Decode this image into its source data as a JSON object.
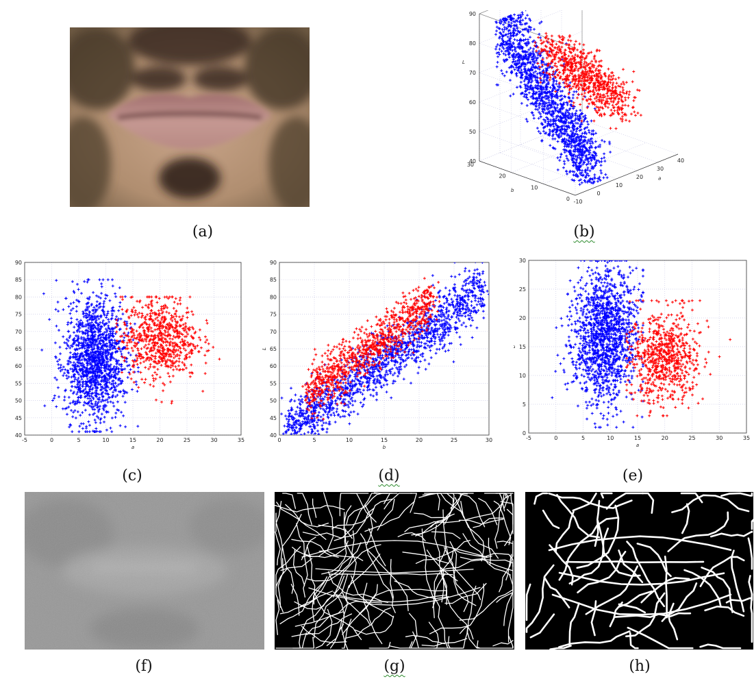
{
  "figure": {
    "captions": {
      "a": "(a)",
      "b": "(b)",
      "c": "(c)",
      "d": "(d)",
      "e": "(e)",
      "f": "(f)",
      "g": "(g)",
      "h": "(h)"
    },
    "colors": {
      "lip_class": "#ff0000",
      "skin_class": "#0000ff",
      "grid": "#c9c9e6"
    }
  },
  "chart_data": [
    {
      "panel": "b",
      "type": "scatter",
      "projection": "3d",
      "xlabel": "a",
      "ylabel": "b",
      "zlabel": "L",
      "xlim": [
        -10,
        40
      ],
      "ylim": [
        0,
        30
      ],
      "zlim": [
        40,
        90
      ],
      "x_ticks": [
        "-10",
        "0",
        "10",
        "20",
        "30",
        "40"
      ],
      "y_ticks": [
        "0",
        "10",
        "20",
        "30"
      ],
      "z_ticks": [
        "40",
        "50",
        "60",
        "70",
        "80",
        "90"
      ],
      "series": [
        {
          "color": "#0000ff",
          "marker": "+",
          "a_range": [
            -2,
            14
          ],
          "b_range": [
            2,
            30
          ],
          "L_range": [
            40,
            85
          ]
        },
        {
          "color": "#ff0000",
          "marker": "+",
          "a_range": [
            10,
            32
          ],
          "b_range": [
            4,
            26
          ],
          "L_range": [
            48,
            78
          ]
        }
      ]
    },
    {
      "panel": "c",
      "type": "scatter",
      "xlabel": "a",
      "ylabel": "L",
      "xlim": [
        -5,
        35
      ],
      "ylim": [
        40,
        90
      ],
      "x_ticks": [
        "-5",
        "0",
        "5",
        "10",
        "15",
        "20",
        "25",
        "30",
        "35"
      ],
      "y_ticks": [
        "40",
        "45",
        "50",
        "55",
        "60",
        "65",
        "70",
        "75",
        "80",
        "85",
        "90"
      ],
      "series": [
        {
          "color": "#0000ff",
          "marker": "+",
          "center": [
            8,
            62
          ],
          "spread": [
            2.8,
            9
          ],
          "x_range": [
            -2,
            16
          ],
          "y_range": [
            41,
            85
          ]
        },
        {
          "color": "#ff0000",
          "marker": "+",
          "center": [
            20,
            68
          ],
          "spread": [
            3.5,
            6
          ],
          "x_range": [
            12,
            31
          ],
          "y_range": [
            49,
            80
          ]
        }
      ]
    },
    {
      "panel": "d",
      "type": "scatter",
      "xlabel": "b",
      "ylabel": "L",
      "xlim": [
        0,
        30
      ],
      "ylim": [
        40,
        90
      ],
      "x_ticks": [
        "0",
        "5",
        "10",
        "15",
        "20",
        "25",
        "30"
      ],
      "y_ticks": [
        "40",
        "45",
        "50",
        "55",
        "60",
        "65",
        "70",
        "75",
        "80",
        "85",
        "90"
      ],
      "series": [
        {
          "color": "#0000ff",
          "marker": "+",
          "trend": [
            [
              1,
              41
            ],
            [
              29,
              82
            ]
          ],
          "band": 4,
          "x_range": [
            1,
            29
          ]
        },
        {
          "color": "#ff0000",
          "marker": "+",
          "trend": [
            [
              4,
              52
            ],
            [
              22,
              79
            ]
          ],
          "band": 3.5,
          "x_range": [
            4,
            22
          ]
        }
      ]
    },
    {
      "panel": "e",
      "type": "scatter",
      "xlabel": "a",
      "ylabel": "b",
      "xlim": [
        -5,
        35
      ],
      "ylim": [
        0,
        30
      ],
      "x_ticks": [
        "-5",
        "0",
        "5",
        "10",
        "15",
        "20",
        "25",
        "30",
        "35"
      ],
      "y_ticks": [
        "0",
        "5",
        "10",
        "15",
        "20",
        "25",
        "30"
      ],
      "series": [
        {
          "color": "#0000ff",
          "marker": "+",
          "center": [
            9,
            17
          ],
          "spread": [
            3,
            6
          ],
          "x_range": [
            -2,
            16
          ],
          "y_range": [
            1,
            30
          ]
        },
        {
          "color": "#ff0000",
          "marker": "+",
          "center": [
            20,
            13
          ],
          "spread": [
            3.2,
            4
          ],
          "x_range": [
            13,
            32
          ],
          "y_range": [
            3,
            23
          ]
        }
      ]
    }
  ]
}
